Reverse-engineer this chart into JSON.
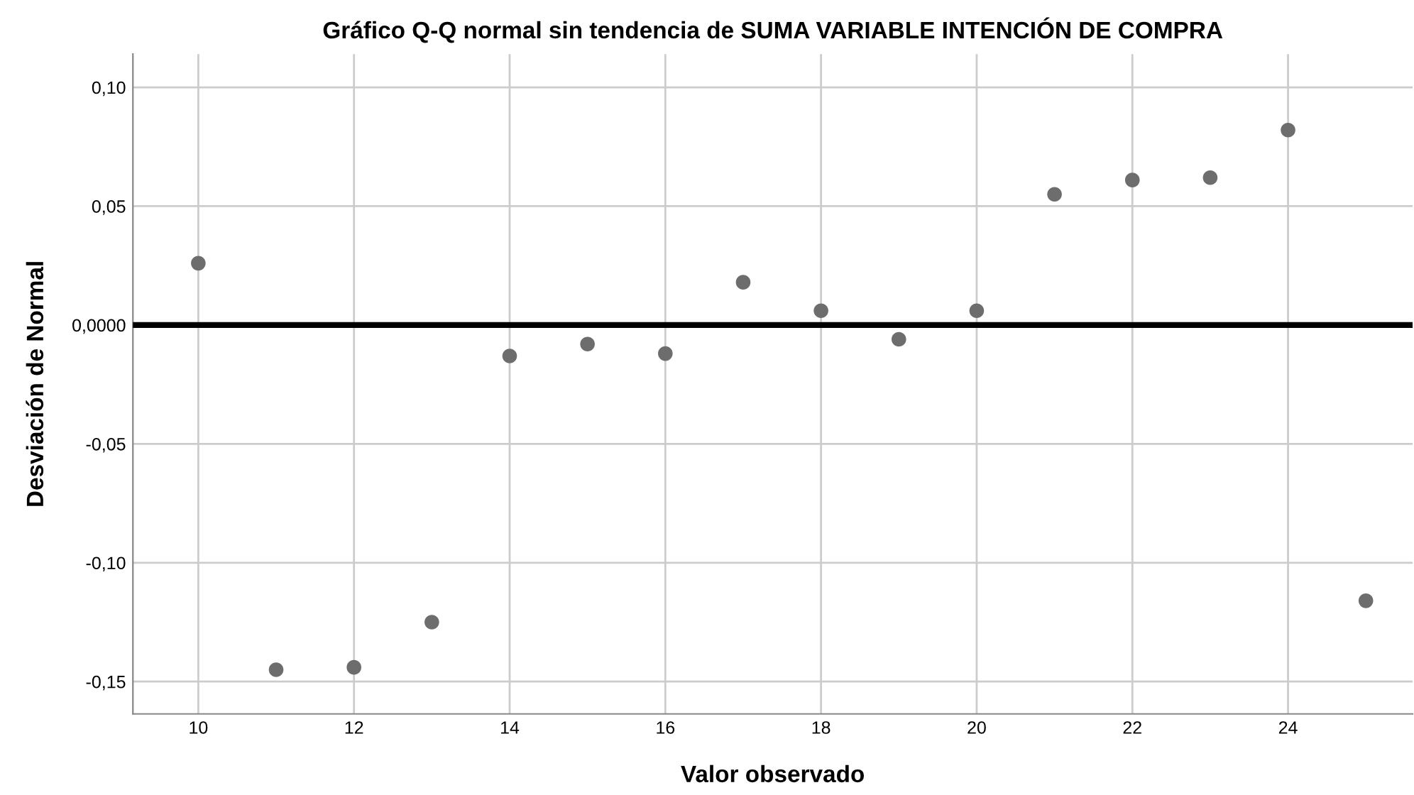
{
  "chart_data": {
    "type": "scatter",
    "title": "Gráfico Q-Q normal sin tendencia de SUMA VARIABLE INTENCIÓN DE COMPRA",
    "xlabel": "Valor observado",
    "ylabel": "Desviación de Normal",
    "x": [
      10,
      11,
      12,
      13,
      14,
      15,
      16,
      17,
      18,
      19,
      20,
      21,
      22,
      23,
      24,
      25
    ],
    "values": [
      0.026,
      -0.145,
      -0.144,
      -0.125,
      -0.013,
      -0.008,
      -0.012,
      0.018,
      0.006,
      -0.006,
      0.006,
      0.055,
      0.061,
      0.062,
      0.082,
      -0.116
    ],
    "color": "#6d6d6d",
    "marker": "circle",
    "xlim": [
      9.16,
      25.6
    ],
    "ylim": [
      -0.1636,
      0.114
    ],
    "xticks": [
      10,
      12,
      14,
      16,
      18,
      20,
      22,
      24
    ],
    "yticks": [
      {
        "value": 0.1,
        "label": "0,10"
      },
      {
        "value": 0.05,
        "label": "0,05"
      },
      {
        "value": 0,
        "label": "0,0000"
      },
      {
        "value": -0.05,
        "label": "-0,05"
      },
      {
        "value": -0.1,
        "label": "-0,10"
      },
      {
        "value": -0.15,
        "label": "-0,15"
      }
    ],
    "ref_lines": [
      {
        "axis": "y",
        "value": 0,
        "label": null,
        "color": "#000000"
      }
    ],
    "grid": true
  }
}
